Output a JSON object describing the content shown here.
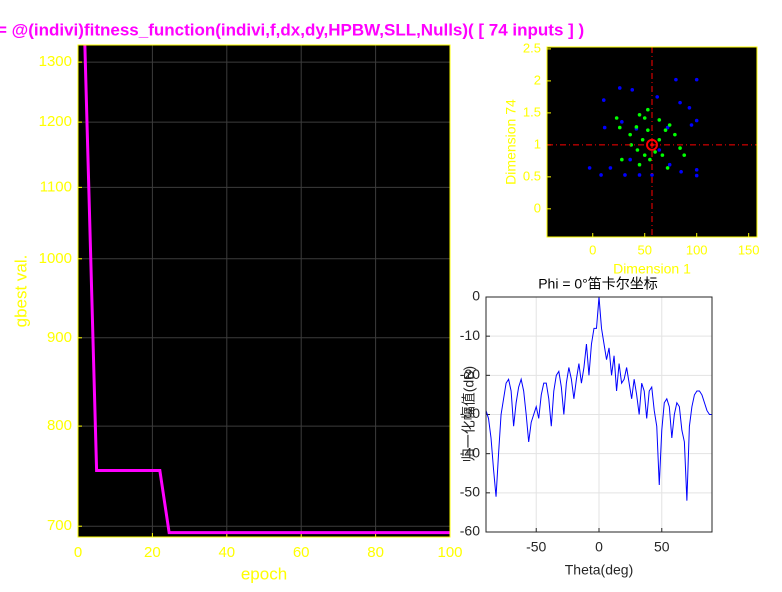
{
  "chart_data": [
    {
      "type": "line",
      "title": "= @(indivi)fitness_function(indivi,f,dx,dy,HPBW,SLL,Nulls)( [ 74 inputs ] )",
      "xlabel": "epoch",
      "ylabel": "gbest val.",
      "x": [
        1.8,
        5,
        22,
        24.5,
        100
      ],
      "values": [
        1340,
        754,
        754,
        694,
        694
      ],
      "color": "#ff00ff",
      "xlim": [
        0,
        100
      ],
      "ylim": [
        690,
        1330
      ],
      "log_y": true,
      "xticks": [
        0,
        20,
        40,
        60,
        80,
        100
      ],
      "yticks": [
        700,
        800,
        900,
        1000,
        1100,
        1200,
        1300
      ],
      "grid": true,
      "background": "#000000",
      "axis_color": "#ffff00",
      "title_color": "#ff00ff"
    },
    {
      "type": "scatter",
      "xlabel": "Dimension 1",
      "ylabel": "Dimension 74",
      "xlim": [
        -44,
        158
      ],
      "ylim": [
        -0.44,
        2.53
      ],
      "xticks": [
        0,
        50,
        100,
        150
      ],
      "yticks": [
        0,
        0.5,
        1,
        1.5,
        2,
        2.5
      ],
      "grid": false,
      "background": "#000000",
      "axis_color": "#ffff00",
      "series": [
        {
          "color": "#0000ff",
          "x": [
            10.6,
            26,
            80,
            100,
            84,
            62,
            28,
            11.5,
            95,
            100,
            42,
            72,
            -3,
            8,
            17,
            31,
            45,
            57,
            74,
            85,
            100,
            100,
            38,
            93,
            36,
            64
          ],
          "y": [
            1.7,
            1.89,
            2.02,
            2.02,
            1.66,
            1.75,
            1.36,
            1.27,
            1.31,
            1.38,
            1.25,
            1.27,
            0.64,
            0.53,
            0.64,
            0.53,
            0.53,
            0.53,
            0.69,
            0.58,
            0.61,
            0.52,
            1.86,
            1.58,
            0.77,
            0.92
          ]
        },
        {
          "color": "#00ff00",
          "x": [
            23,
            26,
            36,
            42,
            45,
            50,
            53,
            48,
            43,
            50,
            55,
            60,
            64,
            70,
            74,
            79,
            84,
            67,
            72,
            37,
            45,
            28,
            88,
            53,
            64
          ],
          "y": [
            1.42,
            1.27,
            1.16,
            1.28,
            1.47,
            1.42,
            1.23,
            1.08,
            0.92,
            0.84,
            0.77,
            0.89,
            1.08,
            1.23,
            1.31,
            1.16,
            0.95,
            0.84,
            0.64,
            1.0,
            0.69,
            0.77,
            0.84,
            1.55,
            1.39
          ]
        },
        {
          "color": "#ff0000",
          "x": [
            57
          ],
          "y": [
            1.0
          ],
          "crosshair": true
        }
      ]
    },
    {
      "type": "line",
      "title": "Phi = 0°笛卡尔坐标",
      "xlabel": "Theta(deg)",
      "ylabel": "归一化幅值(dB)",
      "x": [
        -90,
        -88,
        -86,
        -84,
        -82,
        -80,
        -78,
        -76,
        -74,
        -72,
        -70,
        -68,
        -66,
        -64,
        -62,
        -60,
        -58,
        -56,
        -54,
        -52,
        -50,
        -48,
        -46,
        -44,
        -42,
        -40,
        -38,
        -36,
        -34,
        -32,
        -30,
        -28,
        -26,
        -24,
        -22,
        -20,
        -18,
        -16,
        -14,
        -12,
        -10,
        -8,
        -6,
        -4,
        -2,
        0,
        2,
        4,
        6,
        8,
        10,
        12,
        14,
        16,
        18,
        20,
        22,
        24,
        26,
        28,
        30,
        32,
        34,
        36,
        38,
        40,
        42,
        44,
        46,
        48,
        50,
        52,
        54,
        56,
        58,
        60,
        62,
        64,
        66,
        68,
        70,
        72,
        74,
        76,
        78,
        80,
        82,
        84,
        86,
        88,
        90
      ],
      "values": [
        -29,
        -31,
        -36,
        -44,
        -51,
        -40,
        -30,
        -26,
        -22,
        -21,
        -24,
        -33,
        -27,
        -23,
        -21,
        -24,
        -30,
        -37,
        -32,
        -30,
        -28,
        -31,
        -25,
        -22,
        -22,
        -26,
        -33,
        -24,
        -20,
        -19,
        -23,
        -30,
        -22,
        -18,
        -21,
        -26,
        -21,
        -17,
        -22,
        -18,
        -12,
        -20,
        -12,
        -8,
        -8,
        0,
        -8,
        -12,
        -16,
        -13,
        -20,
        -15,
        -24,
        -17,
        -22,
        -21,
        -18,
        -22,
        -26,
        -21,
        -25,
        -30,
        -22,
        -24,
        -31,
        -24,
        -23,
        -29,
        -33,
        -48,
        -34,
        -27,
        -26,
        -28,
        -36,
        -30,
        -27,
        -28,
        -34,
        -37,
        -52,
        -33,
        -28,
        -25,
        -24,
        -24,
        -25,
        -27,
        -29,
        -30,
        -30
      ],
      "color": "#0000ff",
      "xlim": [
        -90,
        90
      ],
      "ylim": [
        -60,
        0
      ],
      "xticks": [
        -50,
        0,
        50
      ],
      "yticks": [
        0,
        -10,
        -20,
        -30,
        -40,
        -50,
        -60
      ],
      "grid": true,
      "background": "#ffffff",
      "axis_color": "#262626",
      "title_color": "#000000"
    }
  ]
}
